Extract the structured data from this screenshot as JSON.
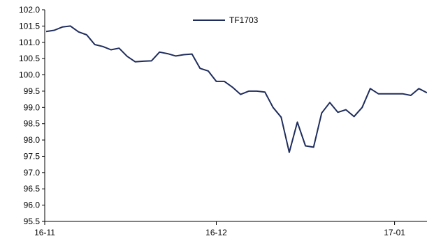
{
  "chart_data": {
    "type": "line",
    "title": "",
    "xlabel": "",
    "ylabel": "",
    "x_ticks": [
      {
        "label": "16-11",
        "index": 0
      },
      {
        "label": "16-12",
        "index": 21
      },
      {
        "label": "17-01",
        "index": 43
      }
    ],
    "y_ticks": [
      "102.0",
      "101.5",
      "101.0",
      "100.5",
      "100.0",
      "99.5",
      "99.0",
      "98.5",
      "98.0",
      "97.5",
      "97.0",
      "96.5",
      "96.0",
      "95.5"
    ],
    "ylim": [
      95.5,
      102.0
    ],
    "grid": false,
    "legend": {
      "position": "top-center"
    },
    "series": [
      {
        "name": "TF1703",
        "color": "#1f2d5c",
        "values": [
          101.33,
          101.37,
          101.47,
          101.5,
          101.32,
          101.23,
          100.93,
          100.87,
          100.77,
          100.82,
          100.57,
          100.4,
          100.42,
          100.43,
          100.7,
          100.65,
          100.58,
          100.62,
          100.64,
          100.2,
          100.12,
          99.8,
          99.8,
          99.62,
          99.4,
          99.5,
          99.5,
          99.47,
          99.0,
          98.7,
          97.62,
          98.55,
          97.82,
          97.78,
          98.83,
          99.15,
          98.85,
          98.93,
          98.72,
          99.0,
          99.58,
          99.42,
          99.42,
          99.42,
          99.42,
          99.37,
          99.58,
          99.45
        ]
      }
    ]
  }
}
